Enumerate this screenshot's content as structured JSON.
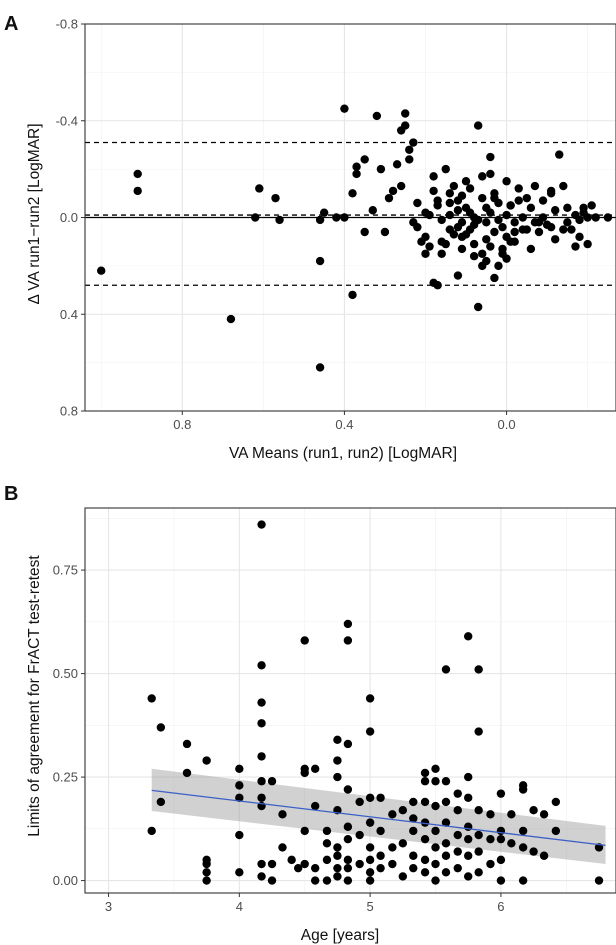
{
  "chart_data": [
    {
      "panel": "A",
      "type": "scatter",
      "xlabel": "VA Means (run1, run2) [LogMAR]",
      "ylabel": "Δ VA run1−run2 [LogMAR]",
      "xlim": [
        1.04,
        -0.27
      ],
      "ylim": [
        0.8,
        -0.8
      ],
      "x_reversed": true,
      "y_reversed": true,
      "xticks": [
        0.8,
        0.4,
        0.0
      ],
      "xtick_labels": [
        "0.8",
        "0.4",
        "0.0"
      ],
      "yticks": [
        -0.8,
        -0.4,
        0.0,
        0.4,
        0.8
      ],
      "ytick_labels": [
        "-0.8",
        "-0.4",
        "0.0",
        "0.4",
        "0.8"
      ],
      "grid": true,
      "hlines": [
        {
          "y": 0.0,
          "style": "solid"
        },
        {
          "y": -0.01,
          "style": "dashed"
        },
        {
          "y": -0.31,
          "style": "dashed"
        },
        {
          "y": 0.28,
          "style": "dashed"
        }
      ],
      "points": [
        [
          1.0,
          0.22
        ],
        [
          0.91,
          -0.18
        ],
        [
          0.91,
          -0.11
        ],
        [
          0.68,
          0.42
        ],
        [
          0.61,
          -0.12
        ],
        [
          0.62,
          0.0
        ],
        [
          0.57,
          -0.08
        ],
        [
          0.56,
          0.01
        ],
        [
          0.46,
          0.62
        ],
        [
          0.46,
          0.18
        ],
        [
          0.46,
          0.01
        ],
        [
          0.45,
          -0.02
        ],
        [
          0.42,
          0.0
        ],
        [
          0.4,
          0.0
        ],
        [
          0.4,
          -0.45
        ],
        [
          0.38,
          -0.1
        ],
        [
          0.37,
          -0.18
        ],
        [
          0.37,
          -0.21
        ],
        [
          0.38,
          0.32
        ],
        [
          0.35,
          -0.24
        ],
        [
          0.35,
          0.06
        ],
        [
          0.33,
          -0.03
        ],
        [
          0.32,
          -0.42
        ],
        [
          0.31,
          -0.2
        ],
        [
          0.3,
          0.06
        ],
        [
          0.29,
          -0.08
        ],
        [
          0.28,
          -0.11
        ],
        [
          0.26,
          -0.13
        ],
        [
          0.26,
          -0.36
        ],
        [
          0.27,
          -0.22
        ],
        [
          0.25,
          -0.43
        ],
        [
          0.25,
          -0.38
        ],
        [
          0.24,
          -0.28
        ],
        [
          0.24,
          -0.24
        ],
        [
          0.23,
          -0.31
        ],
        [
          0.23,
          0.02
        ],
        [
          0.22,
          0.04
        ],
        [
          0.2,
          0.08
        ],
        [
          0.2,
          0.15
        ],
        [
          0.19,
          0.12
        ],
        [
          0.18,
          -0.11
        ],
        [
          0.18,
          -0.17
        ],
        [
          0.18,
          0.27
        ],
        [
          0.17,
          0.28
        ],
        [
          0.17,
          -0.05
        ],
        [
          0.16,
          0.1
        ],
        [
          0.16,
          0.01
        ],
        [
          0.15,
          -0.2
        ],
        [
          0.14,
          -0.06
        ],
        [
          0.14,
          0.05
        ],
        [
          0.13,
          -0.13
        ],
        [
          0.12,
          0.24
        ],
        [
          0.12,
          -0.03
        ],
        [
          0.11,
          -0.09
        ],
        [
          0.11,
          0.13
        ],
        [
          0.1,
          -0.04
        ],
        [
          0.1,
          0.07
        ],
        [
          0.09,
          -0.12
        ],
        [
          0.08,
          0.0
        ],
        [
          0.08,
          0.03
        ],
        [
          0.07,
          -0.38
        ],
        [
          0.07,
          0.37
        ],
        [
          0.06,
          0.15
        ],
        [
          0.05,
          -0.04
        ],
        [
          0.05,
          0.18
        ],
        [
          0.04,
          0.12
        ],
        [
          0.04,
          -0.25
        ],
        [
          0.03,
          0.06
        ],
        [
          0.02,
          -0.06
        ],
        [
          0.01,
          0.04
        ],
        [
          0.0,
          -0.15
        ],
        [
          0.0,
          0.08
        ],
        [
          -0.01,
          0.1
        ],
        [
          -0.02,
          0.02
        ],
        [
          -0.03,
          -0.12
        ],
        [
          -0.03,
          -0.07
        ],
        [
          -0.04,
          0.0
        ],
        [
          -0.05,
          0.05
        ],
        [
          -0.06,
          -0.04
        ],
        [
          -0.07,
          -0.13
        ],
        [
          -0.08,
          0.06
        ],
        [
          -0.09,
          0.0
        ],
        [
          -0.1,
          0.03
        ],
        [
          -0.11,
          -0.11
        ],
        [
          -0.12,
          -0.03
        ],
        [
          -0.13,
          -0.26
        ],
        [
          -0.14,
          0.05
        ],
        [
          -0.15,
          0.02
        ],
        [
          -0.16,
          0.05
        ],
        [
          -0.17,
          -0.01
        ],
        [
          -0.18,
          0.01
        ],
        [
          -0.19,
          -0.04
        ],
        [
          -0.2,
          0.0
        ],
        [
          -0.21,
          -0.05
        ],
        [
          -0.2,
          0.11
        ],
        [
          -0.17,
          0.12
        ],
        [
          -0.14,
          -0.13
        ],
        [
          -0.11,
          -0.1
        ],
        [
          -0.08,
          0.02
        ],
        [
          -0.05,
          -0.08
        ],
        [
          -0.02,
          0.1
        ],
        [
          0.01,
          0.15
        ],
        [
          0.03,
          -0.08
        ],
        [
          0.06,
          -0.17
        ],
        [
          0.09,
          -0.02
        ],
        [
          0.12,
          0.04
        ],
        [
          0.15,
          0.11
        ],
        [
          0.19,
          -0.01
        ],
        [
          0.22,
          -0.06
        ],
        [
          0.01,
          0.13
        ],
        [
          0.0,
          -0.01
        ],
        [
          -0.01,
          -0.05
        ],
        [
          0.02,
          0.01
        ],
        [
          0.04,
          -0.02
        ],
        [
          0.05,
          0.02
        ],
        [
          0.06,
          -0.08
        ],
        [
          0.08,
          0.11
        ],
        [
          0.1,
          -0.15
        ],
        [
          0.11,
          0.02
        ],
        [
          0.13,
          0.07
        ],
        [
          0.14,
          -0.1
        ],
        [
          0.16,
          0.15
        ],
        [
          0.17,
          -0.07
        ],
        [
          0.2,
          -0.02
        ],
        [
          0.21,
          0.1
        ],
        [
          0.07,
          0.01
        ],
        [
          0.09,
          0.05
        ],
        [
          0.12,
          -0.07
        ],
        [
          0.03,
          -0.1
        ],
        [
          -0.04,
          0.05
        ],
        [
          -0.06,
          0.13
        ],
        [
          -0.09,
          -0.07
        ],
        [
          -0.12,
          0.09
        ],
        [
          -0.15,
          -0.04
        ],
        [
          -0.18,
          0.08
        ],
        [
          -0.19,
          -0.02
        ],
        [
          -0.22,
          0.0
        ],
        [
          -0.25,
          0.0
        ],
        [
          -0.07,
          0.02
        ],
        [
          -0.02,
          0.06
        ],
        [
          0.05,
          0.09
        ],
        [
          0.02,
          0.2
        ],
        [
          0.06,
          0.2
        ],
        [
          0.0,
          0.17
        ],
        [
          0.08,
          0.16
        ],
        [
          -0.01,
          -0.05
        ],
        [
          0.04,
          -0.18
        ],
        [
          0.03,
          0.25
        ],
        [
          -0.11,
          0.04
        ],
        [
          0.14,
          -0.01
        ],
        [
          0.11,
          0.08
        ]
      ]
    },
    {
      "panel": "B",
      "type": "scatter",
      "xlabel": "Age [years]",
      "ylabel": "Limits of agreement for FrACT test-retest",
      "xlim": [
        2.82,
        6.88
      ],
      "ylim": [
        -0.03,
        0.9
      ],
      "xticks": [
        3,
        4,
        5,
        6
      ],
      "xtick_labels": [
        "3",
        "4",
        "5",
        "6"
      ],
      "yticks": [
        0.0,
        0.25,
        0.5,
        0.75
      ],
      "ytick_labels": [
        "0.00",
        "0.25",
        "0.50",
        "0.75"
      ],
      "grid": true,
      "regression": {
        "x": [
          3.33,
          6.8
        ],
        "y": [
          0.218,
          0.085
        ],
        "color": "#3b5fc7",
        "band": {
          "lower": [
            0.168,
            0.04
          ],
          "upper": [
            0.27,
            0.132
          ]
        }
      },
      "points": [
        [
          3.33,
          0.44
        ],
        [
          3.33,
          0.12
        ],
        [
          3.4,
          0.37
        ],
        [
          3.4,
          0.19
        ],
        [
          3.6,
          0.33
        ],
        [
          3.6,
          0.26
        ],
        [
          3.75,
          0.29
        ],
        [
          3.75,
          0.05
        ],
        [
          3.75,
          0.04
        ],
        [
          3.75,
          0.02
        ],
        [
          3.75,
          0.0
        ],
        [
          4.0,
          0.27
        ],
        [
          4.0,
          0.23
        ],
        [
          4.0,
          0.2
        ],
        [
          4.0,
          0.11
        ],
        [
          4.0,
          0.02
        ],
        [
          4.17,
          0.86
        ],
        [
          4.17,
          0.52
        ],
        [
          4.17,
          0.43
        ],
        [
          4.17,
          0.38
        ],
        [
          4.17,
          0.3
        ],
        [
          4.17,
          0.24
        ],
        [
          4.17,
          0.2
        ],
        [
          4.17,
          0.18
        ],
        [
          4.17,
          0.04
        ],
        [
          4.17,
          0.01
        ],
        [
          4.25,
          0.24
        ],
        [
          4.25,
          0.04
        ],
        [
          4.25,
          0.0
        ],
        [
          4.33,
          0.16
        ],
        [
          4.33,
          0.08
        ],
        [
          4.4,
          0.05
        ],
        [
          4.45,
          0.03
        ],
        [
          4.5,
          0.58
        ],
        [
          4.5,
          0.27
        ],
        [
          4.5,
          0.26
        ],
        [
          4.5,
          0.12
        ],
        [
          4.5,
          0.04
        ],
        [
          4.58,
          0.27
        ],
        [
          4.58,
          0.18
        ],
        [
          4.58,
          0.03
        ],
        [
          4.58,
          0.0
        ],
        [
          4.67,
          0.12
        ],
        [
          4.67,
          0.09
        ],
        [
          4.67,
          0.05
        ],
        [
          4.67,
          0.0
        ],
        [
          4.75,
          0.34
        ],
        [
          4.75,
          0.29
        ],
        [
          4.75,
          0.25
        ],
        [
          4.75,
          0.17
        ],
        [
          4.75,
          0.08
        ],
        [
          4.75,
          0.06
        ],
        [
          4.75,
          0.03
        ],
        [
          4.75,
          0.01
        ],
        [
          4.83,
          0.62
        ],
        [
          4.83,
          0.58
        ],
        [
          4.83,
          0.33
        ],
        [
          4.83,
          0.22
        ],
        [
          4.83,
          0.13
        ],
        [
          4.83,
          0.1
        ],
        [
          4.83,
          0.05
        ],
        [
          4.83,
          0.03
        ],
        [
          4.83,
          0.0
        ],
        [
          4.92,
          0.19
        ],
        [
          4.92,
          0.11
        ],
        [
          4.92,
          0.04
        ],
        [
          5.0,
          0.44
        ],
        [
          5.0,
          0.36
        ],
        [
          5.0,
          0.2
        ],
        [
          5.0,
          0.14
        ],
        [
          5.0,
          0.08
        ],
        [
          5.0,
          0.05
        ],
        [
          5.0,
          0.02
        ],
        [
          5.0,
          0.0
        ],
        [
          5.08,
          0.2
        ],
        [
          5.08,
          0.12
        ],
        [
          5.08,
          0.06
        ],
        [
          5.08,
          0.03
        ],
        [
          5.17,
          0.16
        ],
        [
          5.17,
          0.08
        ],
        [
          5.17,
          0.04
        ],
        [
          5.25,
          0.17
        ],
        [
          5.25,
          0.09
        ],
        [
          5.25,
          0.01
        ],
        [
          5.33,
          0.19
        ],
        [
          5.33,
          0.15
        ],
        [
          5.33,
          0.12
        ],
        [
          5.33,
          0.06
        ],
        [
          5.33,
          0.03
        ],
        [
          5.42,
          0.26
        ],
        [
          5.42,
          0.24
        ],
        [
          5.42,
          0.19
        ],
        [
          5.42,
          0.14
        ],
        [
          5.42,
          0.1
        ],
        [
          5.42,
          0.05
        ],
        [
          5.42,
          0.02
        ],
        [
          5.5,
          0.27
        ],
        [
          5.5,
          0.24
        ],
        [
          5.5,
          0.18
        ],
        [
          5.5,
          0.12
        ],
        [
          5.5,
          0.08
        ],
        [
          5.5,
          0.04
        ],
        [
          5.5,
          0.0
        ],
        [
          5.58,
          0.51
        ],
        [
          5.58,
          0.24
        ],
        [
          5.58,
          0.19
        ],
        [
          5.58,
          0.14
        ],
        [
          5.58,
          0.09
        ],
        [
          5.58,
          0.06
        ],
        [
          5.58,
          0.02
        ],
        [
          5.67,
          0.21
        ],
        [
          5.67,
          0.17
        ],
        [
          5.67,
          0.11
        ],
        [
          5.67,
          0.07
        ],
        [
          5.67,
          0.03
        ],
        [
          5.75,
          0.59
        ],
        [
          5.75,
          0.25
        ],
        [
          5.75,
          0.2
        ],
        [
          5.75,
          0.13
        ],
        [
          5.75,
          0.1
        ],
        [
          5.75,
          0.06
        ],
        [
          5.75,
          0.01
        ],
        [
          5.83,
          0.51
        ],
        [
          5.83,
          0.36
        ],
        [
          5.83,
          0.17
        ],
        [
          5.83,
          0.11
        ],
        [
          5.83,
          0.07
        ],
        [
          5.83,
          0.02
        ],
        [
          5.92,
          0.16
        ],
        [
          5.92,
          0.1
        ],
        [
          5.92,
          0.04
        ],
        [
          6.0,
          0.21
        ],
        [
          6.0,
          0.12
        ],
        [
          6.0,
          0.1
        ],
        [
          6.0,
          0.05
        ],
        [
          6.0,
          0.0
        ],
        [
          6.08,
          0.16
        ],
        [
          6.08,
          0.09
        ],
        [
          6.17,
          0.23
        ],
        [
          6.17,
          0.22
        ],
        [
          6.17,
          0.12
        ],
        [
          6.17,
          0.08
        ],
        [
          6.17,
          0.0
        ],
        [
          6.25,
          0.17
        ],
        [
          6.25,
          0.07
        ],
        [
          6.33,
          0.16
        ],
        [
          6.33,
          0.06
        ],
        [
          6.42,
          0.19
        ],
        [
          6.42,
          0.12
        ],
        [
          6.75,
          0.08
        ],
        [
          6.75,
          0.0
        ]
      ]
    }
  ],
  "panel_letters": [
    "A",
    "B"
  ]
}
